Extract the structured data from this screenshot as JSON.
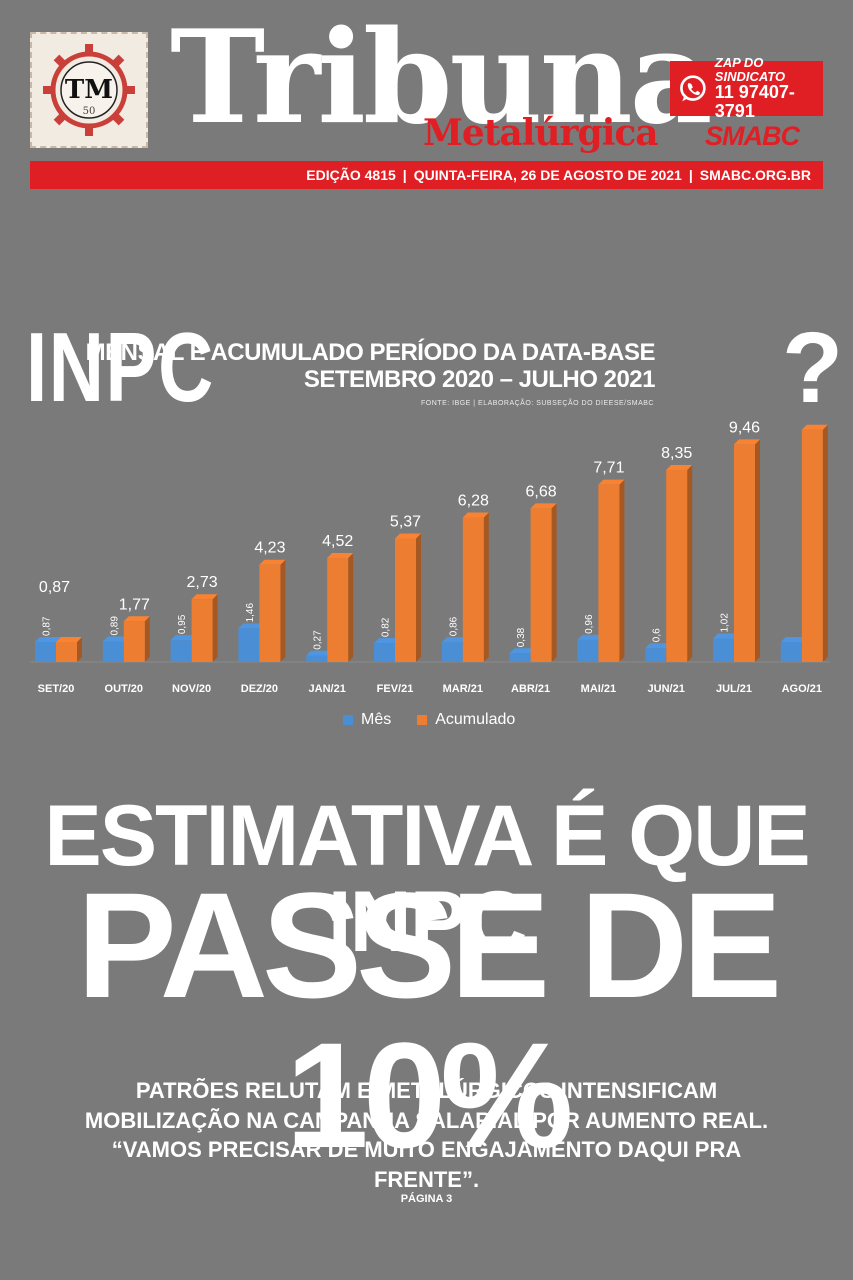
{
  "masthead": {
    "title": "Tribuna",
    "subtitle": "Metalúrgica",
    "logo_letters": "TM",
    "logo_number": "50",
    "partner_logo": "SMABC",
    "zap_label": "ZAP DO SINDICATO",
    "zap_number": "11 97407-3791",
    "zap_icon": "whatsapp-icon"
  },
  "edition_bar": {
    "edition": "EDIÇÃO 4815",
    "date": "QUINTA-FEIRA, 26 DE AGOSTO DE 2021",
    "site": "SMABC.ORG.BR"
  },
  "chart_header": {
    "big_label": "INPC",
    "title_line1": "MENSAL E ACUMULADO PERÍODO DA DATA-BASE",
    "title_line2": "SETEMBRO 2020 – JULHO 2021",
    "source": "FONTE: IBGE | ELABORAÇÃO: SUBSEÇÃO DO DIEESE/SMABC",
    "question_mark": "?"
  },
  "colors": {
    "background": "#7a7a7a",
    "accent_red": "#e01f25",
    "mes": "#4a8fd6",
    "acumulado": "#ed7d31"
  },
  "chart_data": {
    "type": "bar",
    "categories": [
      "SET/20",
      "OUT/20",
      "NOV/20",
      "DEZ/20",
      "JAN/21",
      "FEV/21",
      "MAR/21",
      "ABR/21",
      "MAI/21",
      "JUN/21",
      "JUL/21",
      "AGO/21"
    ],
    "series": [
      {
        "name": "Mês",
        "values": [
          0.87,
          0.89,
          0.95,
          1.46,
          0.27,
          0.82,
          0.86,
          0.38,
          0.96,
          0.6,
          1.02,
          null
        ],
        "labels": [
          "0,87",
          "0,89",
          "0,95",
          "1,46",
          "0,27",
          "0,82",
          "0,86",
          "0,38",
          "0,96",
          "0,6",
          "1,02",
          ""
        ]
      },
      {
        "name": "Acumulado",
        "values": [
          0.87,
          1.77,
          2.73,
          4.23,
          4.52,
          5.37,
          6.28,
          6.68,
          7.71,
          8.35,
          9.46,
          null
        ],
        "labels": [
          "0,87",
          "1,77",
          "2,73",
          "4,23",
          "4,52",
          "5,37",
          "6,28",
          "6,68",
          "7,71",
          "8,35",
          "9,46",
          ""
        ]
      }
    ],
    "ylim": [
      0,
      10.5
    ],
    "grid": false,
    "legend_position": "bottom",
    "data_labels": true
  },
  "headline": {
    "line1": "ESTIMATIVA É QUE INPC",
    "line2": "PASSE DE 10%"
  },
  "subhead": "PATRÕES RELUTAM E METALÚRGICOS INTENSIFICAM MOBILIZAÇÃO NA CAMPANHA SALARIAL POR AUMENTO REAL. “VAMOS PRECISAR DE MUITO ENGAJAMENTO DAQUI PRA FRENTE”.",
  "page_ref": "PÁGINA 3"
}
